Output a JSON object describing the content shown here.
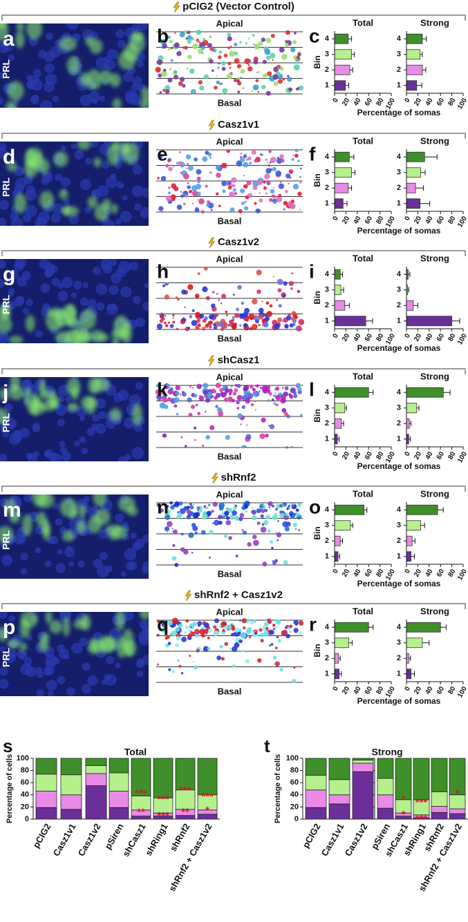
{
  "rows": [
    {
      "header": "pCIG2 (Vector Control)",
      "letters": [
        "a",
        "b",
        "c"
      ],
      "image_label": "PRL",
      "apical": "Apical",
      "basal": "Basal"
    },
    {
      "header": "Casz1v1",
      "letters": [
        "d",
        "e",
        "f"
      ],
      "image_label": "PRL",
      "apical": "Apical",
      "basal": "Basal"
    },
    {
      "header": "Casz1v2",
      "letters": [
        "g",
        "h",
        "i"
      ],
      "image_label": "PRL",
      "apical": "Apical",
      "basal": "Basal"
    },
    {
      "header": "shCasz1",
      "letters": [
        "j",
        "k",
        "l"
      ],
      "image_label": "PRL",
      "apical": "Apical",
      "basal": "Basal"
    },
    {
      "header": "shRnf2",
      "letters": [
        "m",
        "n",
        "o"
      ],
      "image_label": "PRL",
      "apical": "Apical",
      "basal": "Basal"
    },
    {
      "header": "shRnf2 + Casz1v2",
      "letters": [
        "p",
        "q",
        "r"
      ],
      "image_label": "PRL",
      "apical": "Apical",
      "basal": "Basal"
    }
  ],
  "chart_data": [
    {
      "type": "hbar",
      "title": "Total",
      "ylabel": "Bin",
      "xlabel": "Percentage of somas",
      "categories": [
        "4",
        "3",
        "2",
        "1"
      ],
      "values": [
        24,
        30,
        27,
        19
      ],
      "errors": [
        6,
        5,
        5,
        6
      ],
      "colors": [
        "#3f8f2a",
        "#b5f08c",
        "#e88ae6",
        "#6b2f9a"
      ],
      "xlim": [
        0,
        100
      ],
      "xticks": [
        0,
        20,
        40,
        60,
        80,
        100
      ]
    },
    {
      "type": "hbar",
      "title": "Strong",
      "categories": [
        "4",
        "3",
        "2",
        "1"
      ],
      "values": [
        28,
        24,
        28,
        18
      ],
      "errors": [
        7,
        4,
        6,
        9
      ],
      "colors": [
        "#3f8f2a",
        "#b5f08c",
        "#e88ae6",
        "#6b2f9a"
      ],
      "xlim": [
        0,
        100
      ],
      "xticks": [
        0,
        20,
        40,
        60,
        80,
        100
      ]
    },
    {
      "type": "hbar",
      "title": "Total",
      "ylabel": "Bin",
      "xlabel": "Percentage of somas",
      "categories": [
        "4",
        "3",
        "2",
        "1"
      ],
      "values": [
        26,
        30,
        24,
        15
      ],
      "errors": [
        8,
        6,
        6,
        7
      ],
      "colors": [
        "#3f8f2a",
        "#b5f08c",
        "#e88ae6",
        "#6b2f9a"
      ],
      "xlim": [
        0,
        100
      ],
      "xticks": [
        0,
        20,
        40,
        60,
        80,
        100
      ]
    },
    {
      "type": "hbar",
      "title": "Strong",
      "categories": [
        "4",
        "3",
        "2",
        "1"
      ],
      "values": [
        32,
        25,
        16,
        24
      ],
      "errors": [
        22,
        8,
        14,
        17
      ],
      "colors": [
        "#3f8f2a",
        "#b5f08c",
        "#e88ae6",
        "#6b2f9a"
      ],
      "xlim": [
        0,
        100
      ],
      "xticks": [
        0,
        20,
        40,
        60,
        80,
        100
      ]
    },
    {
      "type": "hbar",
      "title": "Total",
      "ylabel": "Bin",
      "xlabel": "Percentage of somas",
      "categories": [
        "4",
        "3",
        "2",
        "1"
      ],
      "values": [
        10,
        11,
        18,
        55
      ],
      "errors": [
        4,
        5,
        8,
        12
      ],
      "colors": [
        "#3f8f2a",
        "#b5f08c",
        "#e88ae6",
        "#6b2f9a"
      ],
      "xlim": [
        0,
        100
      ],
      "xticks": [
        0,
        20,
        40,
        60,
        80,
        100
      ]
    },
    {
      "type": "hbar",
      "title": "Strong",
      "categories": [
        "4",
        "3",
        "2",
        "1"
      ],
      "values": [
        3,
        2,
        12,
        80
      ],
      "errors": [
        3,
        2,
        8,
        14
      ],
      "colors": [
        "#3f8f2a",
        "#b5f08c",
        "#e88ae6",
        "#6b2f9a"
      ],
      "xlim": [
        0,
        100
      ],
      "xticks": [
        0,
        20,
        40,
        60,
        80,
        100
      ]
    },
    {
      "type": "hbar",
      "title": "Total",
      "ylabel": "Bin",
      "xlabel": "Percentage of somas",
      "categories": [
        "4",
        "3",
        "2",
        "1"
      ],
      "values": [
        60,
        18,
        12,
        5
      ],
      "errors": [
        8,
        3,
        4,
        3
      ],
      "colors": [
        "#3f8f2a",
        "#b5f08c",
        "#e88ae6",
        "#6b2f9a"
      ],
      "xlim": [
        0,
        100
      ],
      "xticks": [
        0,
        20,
        40,
        60,
        80,
        100
      ]
    },
    {
      "type": "hbar",
      "title": "Strong",
      "categories": [
        "4",
        "3",
        "2",
        "1"
      ],
      "values": [
        65,
        18,
        5,
        4
      ],
      "errors": [
        12,
        4,
        3,
        3
      ],
      "colors": [
        "#3f8f2a",
        "#b5f08c",
        "#e88ae6",
        "#6b2f9a"
      ],
      "xlim": [
        0,
        100
      ],
      "xticks": [
        0,
        20,
        40,
        60,
        80,
        100
      ]
    },
    {
      "type": "hbar",
      "title": "Total",
      "ylabel": "Bin",
      "xlabel": "Percentage of somas",
      "categories": [
        "4",
        "3",
        "2",
        "1"
      ],
      "values": [
        52,
        28,
        10,
        6
      ],
      "errors": [
        5,
        4,
        4,
        3
      ],
      "colors": [
        "#3f8f2a",
        "#b5f08c",
        "#e88ae6",
        "#6b2f9a"
      ],
      "xlim": [
        0,
        100
      ],
      "xticks": [
        0,
        20,
        40,
        60,
        80,
        100
      ]
    },
    {
      "type": "hbar",
      "title": "Strong",
      "categories": [
        "4",
        "3",
        "2",
        "1"
      ],
      "values": [
        55,
        25,
        10,
        8
      ],
      "errors": [
        10,
        7,
        5,
        6
      ],
      "colors": [
        "#3f8f2a",
        "#b5f08c",
        "#e88ae6",
        "#6b2f9a"
      ],
      "xlim": [
        0,
        100
      ],
      "xticks": [
        0,
        20,
        40,
        60,
        80,
        100
      ]
    },
    {
      "type": "hbar",
      "title": "Total",
      "ylabel": "Bin",
      "xlabel": "Percentage of somas",
      "categories": [
        "4",
        "3",
        "2",
        "1"
      ],
      "values": [
        60,
        25,
        7,
        8
      ],
      "errors": [
        8,
        6,
        3,
        4
      ],
      "colors": [
        "#3f8f2a",
        "#b5f08c",
        "#e88ae6",
        "#6b2f9a"
      ],
      "xlim": [
        0,
        100
      ],
      "xticks": [
        0,
        20,
        40,
        60,
        80,
        100
      ]
    },
    {
      "type": "hbar",
      "title": "Strong",
      "categories": [
        "4",
        "3",
        "2",
        "1"
      ],
      "values": [
        60,
        28,
        4,
        8
      ],
      "errors": [
        10,
        12,
        3,
        6
      ],
      "colors": [
        "#3f8f2a",
        "#b5f08c",
        "#e88ae6",
        "#6b2f9a"
      ],
      "xlim": [
        0,
        100
      ],
      "xticks": [
        0,
        20,
        40,
        60,
        80,
        100
      ]
    },
    {
      "type": "stacked_bar",
      "panel": "s",
      "title": "Total",
      "ylabel": "Percentage of cells",
      "categories": [
        "pCIG2",
        "Casz1v1",
        "Casz1v2",
        "pSiren",
        "shCasz1",
        "shRing1",
        "shRnf2",
        "shRnf2 + Casz1v2"
      ],
      "series": [
        {
          "color": "#6b2f9a",
          "values": [
            19,
            16,
            55,
            19,
            5,
            5,
            6,
            8
          ]
        },
        {
          "color": "#e88ae6",
          "values": [
            27,
            24,
            20,
            27,
            10,
            5,
            10,
            7
          ]
        },
        {
          "color": "#b5f08c",
          "values": [
            28,
            33,
            13,
            30,
            23,
            25,
            32,
            25
          ]
        },
        {
          "color": "#3f8f2a",
          "values": [
            26,
            27,
            12,
            24,
            62,
            65,
            52,
            60
          ]
        }
      ],
      "ylim": [
        0,
        100
      ],
      "yticks": [
        0,
        20,
        40,
        60,
        80,
        100
      ],
      "annotations": [
        {
          "category": "shCasz1",
          "y": 45,
          "text": "***"
        },
        {
          "category": "shCasz1",
          "y": 14,
          "text": "**"
        },
        {
          "category": "shRing1",
          "y": 35,
          "text": "***"
        },
        {
          "category": "shRing1",
          "y": 8,
          "text": "***"
        },
        {
          "category": "shRnf2",
          "y": 50,
          "text": "***"
        },
        {
          "category": "shRnf2",
          "y": 14,
          "text": "**"
        },
        {
          "category": "shRnf2 + Casz1v2",
          "y": 40,
          "text": "***"
        },
        {
          "category": "shRnf2 + Casz1v2",
          "y": 17,
          "text": "*"
        }
      ]
    },
    {
      "type": "stacked_bar",
      "panel": "t",
      "title": "Strong",
      "ylabel": "Percentage of cells",
      "categories": [
        "pCIG2",
        "Casz1v1",
        "Casz1v2",
        "pSiren",
        "shCasz1",
        "shRing1",
        "shRnf2",
        "shRnf2 + Casz1v2"
      ],
      "series": [
        {
          "color": "#6b2f9a",
          "values": [
            19,
            25,
            78,
            18,
            5,
            2,
            11,
            9
          ]
        },
        {
          "color": "#e88ae6",
          "values": [
            29,
            15,
            14,
            22,
            5,
            5,
            10,
            8
          ]
        },
        {
          "color": "#b5f08c",
          "values": [
            24,
            25,
            5,
            27,
            22,
            25,
            24,
            23
          ]
        },
        {
          "color": "#3f8f2a",
          "values": [
            28,
            35,
            3,
            33,
            68,
            68,
            55,
            60
          ]
        }
      ],
      "ylim": [
        0,
        100
      ],
      "yticks": [
        0,
        20,
        40,
        60,
        80,
        100
      ],
      "annotations": [
        {
          "category": "shCasz1",
          "y": 35,
          "text": "*"
        },
        {
          "category": "shCasz1",
          "y": 10,
          "text": "*"
        },
        {
          "category": "shRing1",
          "y": 30,
          "text": "***"
        },
        {
          "category": "shRing1",
          "y": 3,
          "text": "***"
        },
        {
          "category": "shRnf2 + Casz1v2",
          "y": 45,
          "text": "*"
        }
      ]
    }
  ]
}
